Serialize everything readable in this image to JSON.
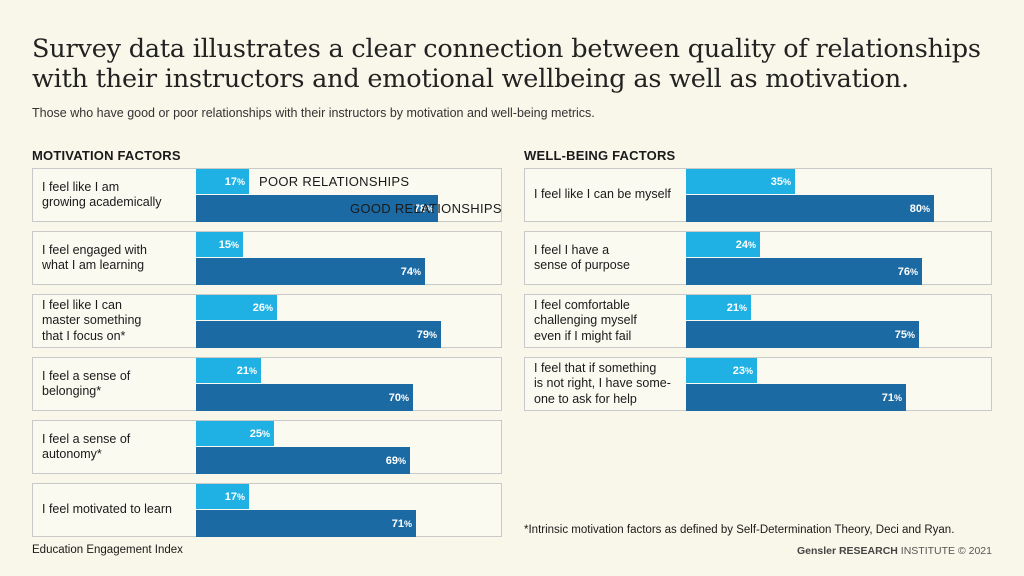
{
  "title_line1": "Survey data illustrates a clear connection between quality of relationships",
  "title_line2": "with their instructors and emotional wellbeing as well as motivation.",
  "subtitle": "Those who have good or poor relationships with their instructors by motivation and well-being metrics.",
  "legend": {
    "poor": "POOR RELATIONSHIPS",
    "good": "GOOD RELATIONSHIPS"
  },
  "colors": {
    "poor": "#1fb1e3",
    "good": "#1c6aa3",
    "background": "#f9f7e9"
  },
  "chart_data": [
    {
      "type": "bar",
      "orientation": "horizontal",
      "title": "MOTIVATION FACTORS",
      "categories": [
        "I feel like I am\ngrowing academically",
        "I feel engaged with\nwhat I am learning",
        "I feel like I can\nmaster something\nthat I focus on*",
        "I feel a sense of\nbelonging*",
        "I feel a sense of\nautonomy*",
        "I feel motivated to learn"
      ],
      "series": [
        {
          "name": "POOR RELATIONSHIPS",
          "values": [
            17,
            15,
            26,
            21,
            25,
            17
          ]
        },
        {
          "name": "GOOD RELATIONSHIPS",
          "values": [
            78,
            74,
            79,
            70,
            69,
            71
          ]
        }
      ],
      "value_suffix": "%",
      "xlim": [
        0,
        100
      ]
    },
    {
      "type": "bar",
      "orientation": "horizontal",
      "title": "WELL-BEING FACTORS",
      "categories": [
        "I feel like I can be myself",
        "I feel I have a\nsense of purpose",
        "I feel comfortable\nchallenging myself\neven if I might fail",
        "I feel that if something\nis not right, I have some-\none to ask for help"
      ],
      "series": [
        {
          "name": "POOR RELATIONSHIPS",
          "values": [
            35,
            24,
            21,
            23
          ]
        },
        {
          "name": "GOOD RELATIONSHIPS",
          "values": [
            80,
            76,
            75,
            71
          ]
        }
      ],
      "value_suffix": "%",
      "xlim": [
        0,
        100
      ]
    }
  ],
  "footnote": "*Intrinsic motivation factors as defined by Self-Determination Theory, Deci and Ryan.",
  "footer_left": "Education Engagement Index",
  "footer_right_bold": "Gensler RESEARCH",
  "footer_right_rest": " INSTITUTE © 2021"
}
